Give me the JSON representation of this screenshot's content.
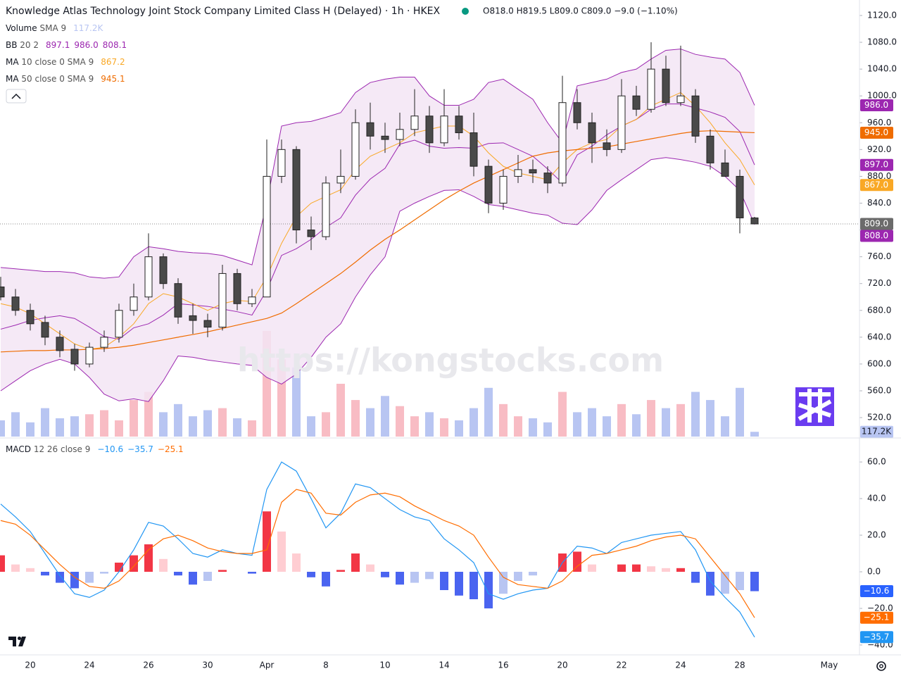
{
  "chart_data": {
    "type": "candlestick",
    "title": "Knowledge Atlas Technology Joint Stock Company Limited Class H (Delayed) · 1h · HKEX",
    "ohlc_text": "O818.0 H819.5 L809.0 C809.0 −9.0 (−1.10%)",
    "categories": [
      null,
      null,
      "20",
      null,
      null,
      null,
      "24",
      null,
      null,
      null,
      "26",
      null,
      null,
      null,
      "30",
      null,
      null,
      null,
      "Apr",
      null,
      null,
      null,
      "8",
      null,
      null,
      null,
      "10",
      null,
      null,
      null,
      "14",
      null,
      null,
      null,
      "16",
      null,
      null,
      null,
      "20",
      null,
      null,
      null,
      "22",
      null,
      null,
      null,
      "24",
      null,
      null,
      null,
      "28",
      null
    ],
    "future_label": "May",
    "open": [
      715,
      700,
      680,
      662,
      640,
      622,
      600,
      625,
      640,
      680,
      700,
      760,
      720,
      672,
      665,
      655,
      735,
      690,
      700,
      880,
      920,
      800,
      790,
      870,
      880,
      960,
      940,
      935,
      950,
      970,
      930,
      970,
      945,
      895,
      840,
      880,
      890,
      885,
      870,
      990,
      960,
      930,
      920,
      1000,
      980,
      1040,
      990,
      1000,
      940,
      900,
      880,
      818
    ],
    "high": [
      730,
      712,
      690,
      672,
      650,
      630,
      632,
      650,
      690,
      720,
      795,
      765,
      728,
      690,
      675,
      748,
      742,
      712,
      935,
      935,
      925,
      820,
      880,
      920,
      980,
      990,
      960,
      975,
      1010,
      985,
      1010,
      985,
      975,
      905,
      890,
      912,
      905,
      895,
      1030,
      1010,
      975,
      950,
      1025,
      1015,
      1080,
      1060,
      1075,
      1010,
      950,
      920,
      890,
      819.5
    ],
    "low": [
      695,
      672,
      650,
      628,
      610,
      590,
      595,
      618,
      632,
      672,
      695,
      712,
      660,
      645,
      640,
      650,
      680,
      685,
      700,
      870,
      780,
      770,
      785,
      855,
      875,
      920,
      915,
      925,
      940,
      915,
      925,
      935,
      880,
      825,
      830,
      870,
      870,
      855,
      865,
      950,
      900,
      910,
      915,
      970,
      975,
      985,
      985,
      930,
      890,
      880,
      795,
      809
    ],
    "close": [
      700,
      680,
      660,
      640,
      620,
      600,
      625,
      640,
      680,
      700,
      760,
      720,
      670,
      665,
      655,
      735,
      690,
      700,
      880,
      920,
      800,
      790,
      870,
      880,
      960,
      940,
      935,
      950,
      970,
      930,
      970,
      945,
      895,
      840,
      880,
      890,
      885,
      870,
      990,
      960,
      930,
      920,
      1000,
      980,
      1040,
      990,
      1000,
      940,
      900,
      880,
      818,
      809
    ],
    "volume": [
      400000,
      600000,
      350000,
      700000,
      450000,
      500000,
      550000,
      650000,
      400000,
      900000,
      1100000,
      600000,
      800000,
      500000,
      650000,
      700000,
      450000,
      400000,
      2600000,
      1900000,
      1700000,
      500000,
      600000,
      1300000,
      900000,
      700000,
      1000000,
      750000,
      500000,
      600000,
      450000,
      400000,
      700000,
      1200000,
      800000,
      500000,
      450000,
      350000,
      1100000,
      600000,
      700000,
      500000,
      800000,
      550000,
      900000,
      700000,
      800000,
      1100000,
      900000,
      500000,
      1200000,
      117200
    ],
    "colors": {
      "up_fill": "#ffffff",
      "down_fill": "#4a4a4a",
      "wick": "#222222",
      "volume_up": "#f8bcc4",
      "volume_down": "#b8c5f2"
    },
    "ylim": [
      491.7,
      1143.1
    ],
    "yticks": [
      {
        "value": 1120,
        "label": "1120.0"
      },
      {
        "value": 1080,
        "label": "1080.0"
      },
      {
        "value": 1040,
        "label": "1040.0"
      },
      {
        "value": 1000,
        "label": "1000.0"
      },
      {
        "value": 960,
        "label": "960.0"
      },
      {
        "value": 920,
        "label": "920.0"
      },
      {
        "value": 880,
        "label": "880.0"
      },
      {
        "value": 840,
        "label": "840.0"
      },
      {
        "value": 800,
        "label": "800.0"
      },
      {
        "value": 760,
        "label": "760.0"
      },
      {
        "value": 720,
        "label": "720.0"
      },
      {
        "value": 680,
        "label": "680.0"
      },
      {
        "value": 640,
        "label": "640.0"
      },
      {
        "value": 600,
        "label": "600.0"
      },
      {
        "value": 560,
        "label": "560.0"
      },
      {
        "value": 520,
        "label": "520.0"
      }
    ],
    "last_price": 809,
    "indicators": {
      "volume": {
        "name": "Volume",
        "params": "SMA 9",
        "legend": "117.2K",
        "color": "#b8c5f2"
      },
      "bb": {
        "name": "BB",
        "params": "20 2",
        "legend": [
          "897.1",
          "986.0",
          "808.1"
        ],
        "color": "#9c27b0",
        "fill": "#f3e5f5",
        "upper": [
          744,
          742,
          740,
          738,
          738,
          736,
          730,
          728,
          730,
          760,
          775,
          772,
          768,
          766,
          765,
          762,
          755,
          748,
          840,
          955,
          960,
          962,
          968,
          975,
          1005,
          1020,
          1025,
          1028,
          1028,
          1000,
          986,
          986,
          995,
          1020,
          1025,
          1010,
          995,
          960,
          930,
          1015,
          1020,
          1025,
          1035,
          1040,
          1055,
          1068,
          1070,
          1062,
          1058,
          1055,
          1035,
          986
        ],
        "basis": [
          652,
          658,
          665,
          669,
          672,
          668,
          655,
          641,
          637,
          654,
          660,
          673,
          690,
          688,
          686,
          682,
          678,
          673,
          710,
          762,
          772,
          786,
          804,
          818,
          852,
          876,
          892,
          928,
          934,
          925,
          922,
          923,
          922,
          929,
          930,
          920,
          910,
          891,
          870,
          912,
          925,
          942,
          955,
          965,
          980,
          988,
          988,
          982,
          976,
          968,
          947,
          897.1
        ],
        "lower": [
          560,
          575,
          590,
          600,
          607,
          600,
          580,
          555,
          545,
          548,
          544,
          575,
          612,
          610,
          606,
          603,
          600,
          598,
          580,
          570,
          585,
          610,
          640,
          660,
          700,
          733,
          760,
          828,
          840,
          850,
          859,
          860,
          850,
          838,
          835,
          830,
          825,
          822,
          810,
          808,
          830,
          859,
          875,
          890,
          905,
          908,
          905,
          901,
          895,
          880,
          859,
          808.1
        ]
      },
      "ma10": {
        "name": "MA",
        "params": "10 close 0 SMA 9",
        "legend": "867.2",
        "color": "#f9a825",
        "values": [
          690,
          685,
          675,
          660,
          645,
          630,
          622,
          625,
          640,
          660,
          690,
          705,
          700,
          690,
          680,
          690,
          695,
          693,
          730,
          780,
          820,
          840,
          850,
          860,
          890,
          910,
          920,
          930,
          945,
          950,
          955,
          955,
          940,
          915,
          895,
          885,
          880,
          875,
          900,
          920,
          930,
          935,
          955,
          965,
          985,
          995,
          1005,
          985,
          960,
          930,
          905,
          867.2
        ]
      },
      "ma50": {
        "name": "MA",
        "params": "50 close 0 SMA 9",
        "legend": "945.1",
        "color": "#ef6c00",
        "values": [
          618,
          619,
          620,
          620,
          621,
          621,
          622,
          623,
          625,
          628,
          632,
          636,
          640,
          644,
          648,
          653,
          658,
          663,
          668,
          676,
          690,
          705,
          720,
          735,
          752,
          770,
          786,
          800,
          815,
          830,
          845,
          858,
          870,
          880,
          890,
          900,
          910,
          915,
          918,
          920,
          922,
          924,
          928,
          932,
          936,
          940,
          944,
          947,
          948,
          947,
          946,
          945.1
        ]
      }
    },
    "price_tags": [
      {
        "value": 986,
        "label": "986.0",
        "color": "#9c27b0"
      },
      {
        "value": 945,
        "label": "945.0",
        "color": "#ef6c00"
      },
      {
        "value": 897,
        "label": "897.0",
        "color": "#9c27b0"
      },
      {
        "value": 867,
        "label": "867.0",
        "color": "#f9a825"
      },
      {
        "value": 809,
        "label": "809.0",
        "color": "#6b6b6b"
      },
      {
        "value": 808,
        "label": "808.0",
        "color": "#9c27b0"
      }
    ],
    "volume_tag": {
      "value": 117200,
      "label": "117.2K"
    },
    "macd": {
      "name": "MACD",
      "params": "12 26 close 9",
      "legend": [
        "−10.6",
        "−35.7",
        "−25.1"
      ],
      "macd_color": "#2196f3",
      "signal_color": "#ff6d00",
      "hist_colors": {
        "pos_rise": "#f23645",
        "pos_fall": "#ffcdd2",
        "neg_fall": "#4a64f0",
        "neg_rise": "#b8c5f2"
      },
      "ylim": [
        -45.4,
        70.8
      ],
      "yticks": [
        {
          "value": 60,
          "label": "60.0"
        },
        {
          "value": 40,
          "label": "40.0"
        },
        {
          "value": 20,
          "label": "20.0"
        },
        {
          "value": 0,
          "label": "0.0"
        },
        {
          "value": -20,
          "label": "−20.0"
        },
        {
          "value": -40,
          "label": "−40.0"
        }
      ],
      "macd_line": [
        37,
        30,
        22,
        10,
        -2,
        -12,
        -14,
        -10,
        0,
        12,
        27,
        25,
        18,
        10,
        8,
        12,
        10,
        9,
        45,
        60,
        55,
        40,
        24,
        32,
        48,
        46,
        40,
        34,
        30,
        28,
        18,
        12,
        5,
        -12,
        -15,
        -12,
        -10,
        -9,
        5,
        14,
        13,
        10,
        16,
        18,
        20,
        21,
        22,
        12,
        -5,
        -14,
        -22,
        -35.7
      ],
      "signal": [
        28,
        26,
        20,
        12,
        4,
        -3,
        -8,
        -9,
        -5,
        3,
        12,
        18,
        20,
        17,
        13,
        11,
        10,
        10,
        12,
        38,
        45,
        43,
        32,
        31,
        38,
        42,
        43,
        41,
        36,
        32,
        28,
        25,
        20,
        8,
        -3,
        -7,
        -8,
        -9,
        -5,
        3,
        9,
        10,
        12,
        14,
        17,
        19,
        20,
        18,
        8,
        -2,
        -12,
        -25.1
      ],
      "hist": [
        9,
        4,
        2,
        -2,
        -6,
        -9,
        -6,
        -1,
        5,
        9,
        15,
        7,
        -2,
        -7,
        -5,
        1,
        0,
        -1,
        33,
        22,
        10,
        -3,
        -8,
        1,
        10,
        4,
        -3,
        -7,
        -6,
        -4,
        -10,
        -13,
        -15,
        -20,
        -12,
        -5,
        -2,
        0,
        10,
        11,
        4,
        0,
        4,
        4,
        3,
        2,
        2,
        -6,
        -13,
        -12,
        -10,
        -10.6
      ],
      "tags": [
        {
          "value": -10.6,
          "label": "−10.6",
          "color": "#2962ff"
        },
        {
          "value": -25.1,
          "label": "−25.1",
          "color": "#ff6d00"
        },
        {
          "value": -35.7,
          "label": "−35.7",
          "color": "#2196f3"
        }
      ]
    },
    "watermark": "https://kongstocks.com"
  }
}
